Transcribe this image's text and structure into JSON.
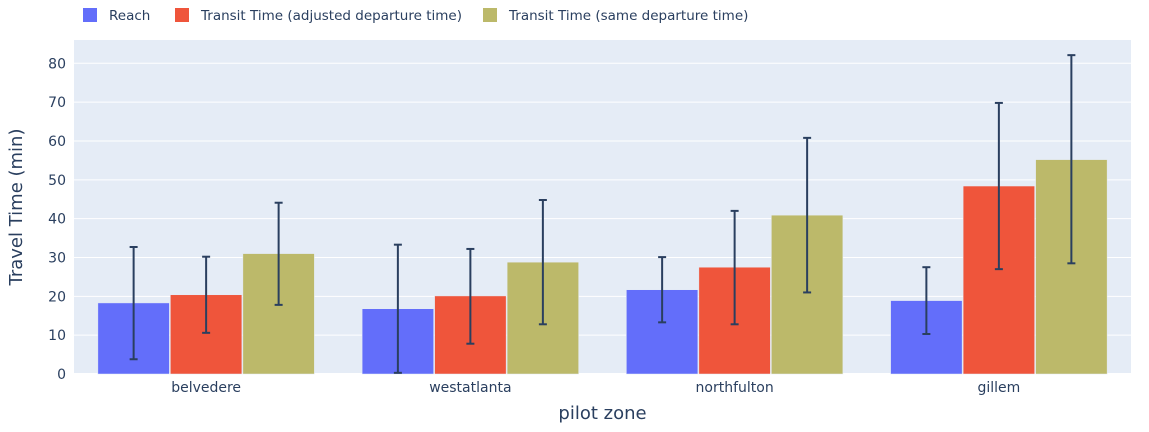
{
  "chart_data": {
    "type": "bar",
    "categories": [
      "belvedere",
      "westatlanta",
      "northfulton",
      "gillem"
    ],
    "series": [
      {
        "name": "Reach",
        "color": "#636efa",
        "values": [
          18.3,
          16.8,
          21.7,
          18.9
        ],
        "error_low": [
          3.8,
          0.3,
          13.3,
          10.3
        ],
        "error_high": [
          32.7,
          33.3,
          30.1,
          27.5
        ]
      },
      {
        "name": "Transit Time (adjusted departure time)",
        "color": "#ef553b",
        "values": [
          20.4,
          20.1,
          27.5,
          48.4
        ],
        "error_low": [
          10.6,
          7.8,
          12.8,
          27.0
        ],
        "error_high": [
          30.2,
          32.2,
          42.0,
          69.8
        ]
      },
      {
        "name": "Transit Time (same departure time)",
        "color": "#bcb96a",
        "values": [
          31.0,
          28.8,
          40.9,
          55.2
        ],
        "error_low": [
          17.8,
          12.8,
          21.0,
          28.5
        ],
        "error_high": [
          44.1,
          44.8,
          60.8,
          82.1
        ]
      }
    ],
    "xlabel": "pilot zone",
    "ylabel": "Travel Time (min)",
    "ylim": [
      0,
      86
    ],
    "yticks": [
      0,
      10,
      20,
      30,
      40,
      50,
      60,
      70,
      80
    ],
    "grid": true,
    "legend_position": "top",
    "plot_background": "#e5ecf6",
    "error_bar_color": "#2a3f5f"
  }
}
